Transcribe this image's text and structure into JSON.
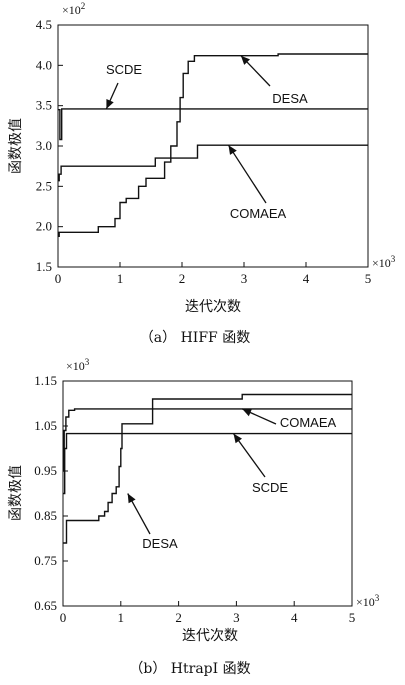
{
  "chart_data": [
    {
      "type": "line",
      "caption": "（a） HIFF 函数",
      "xlabel": "迭代次数",
      "ylabel": "函数极值",
      "x_multiplier": "×10",
      "x_multiplier_exp": "3",
      "y_multiplier": "×10",
      "y_multiplier_exp": "2",
      "xlim": [
        0,
        5
      ],
      "ylim": [
        1.5,
        4.5
      ],
      "x_ticks": [
        "0",
        "1",
        "2",
        "3",
        "4",
        "5"
      ],
      "y_ticks": [
        "1.5",
        "2.0",
        "2.5",
        "3.0",
        "3.5",
        "4.0",
        "4.5"
      ],
      "series": [
        {
          "name": "SCDE",
          "points": [
            [
              0,
              3.45
            ],
            [
              0.03,
              3.45
            ],
            [
              0.03,
              3.08
            ],
            [
              0.06,
              3.08
            ],
            [
              0.06,
              3.46
            ],
            [
              5,
              3.46
            ]
          ]
        },
        {
          "name": "DESA",
          "points": [
            [
              0,
              1.88
            ],
            [
              0.02,
              1.88
            ],
            [
              0.02,
              1.93
            ],
            [
              0.65,
              1.93
            ],
            [
              0.65,
              2.0
            ],
            [
              0.92,
              2.0
            ],
            [
              0.92,
              2.1
            ],
            [
              1.0,
              2.1
            ],
            [
              1.0,
              2.3
            ],
            [
              1.1,
              2.3
            ],
            [
              1.1,
              2.35
            ],
            [
              1.3,
              2.35
            ],
            [
              1.3,
              2.5
            ],
            [
              1.42,
              2.5
            ],
            [
              1.42,
              2.6
            ],
            [
              1.72,
              2.6
            ],
            [
              1.72,
              2.8
            ],
            [
              1.82,
              2.8
            ],
            [
              1.82,
              3.0
            ],
            [
              1.92,
              3.0
            ],
            [
              1.92,
              3.3
            ],
            [
              1.97,
              3.3
            ],
            [
              1.97,
              3.6
            ],
            [
              2.02,
              3.6
            ],
            [
              2.02,
              3.9
            ],
            [
              2.1,
              3.9
            ],
            [
              2.1,
              4.05
            ],
            [
              2.2,
              4.05
            ],
            [
              2.2,
              4.12
            ],
            [
              3.55,
              4.12
            ],
            [
              3.55,
              4.14
            ],
            [
              5,
              4.14
            ]
          ]
        },
        {
          "name": "COMAEA",
          "points": [
            [
              0,
              2.57
            ],
            [
              0.02,
              2.57
            ],
            [
              0.02,
              2.65
            ],
            [
              0.05,
              2.65
            ],
            [
              0.05,
              2.75
            ],
            [
              1.57,
              2.75
            ],
            [
              1.57,
              2.85
            ],
            [
              2.25,
              2.85
            ],
            [
              2.25,
              3.01
            ],
            [
              5,
              3.01
            ]
          ]
        }
      ],
      "annotations": [
        {
          "text": "SCDE",
          "target": [
            0.78,
            3.46
          ]
        },
        {
          "text": "DESA",
          "target": [
            2.95,
            4.12
          ]
        },
        {
          "text": "COMAEA",
          "target": [
            2.75,
            3.01
          ]
        }
      ]
    },
    {
      "type": "line",
      "caption": "（b） HtrapI 函数",
      "xlabel": "迭代次数",
      "ylabel": "函数极值",
      "x_multiplier": "×10",
      "x_multiplier_exp": "3",
      "y_multiplier": "×10",
      "y_multiplier_exp": "3",
      "xlim": [
        0,
        5
      ],
      "ylim": [
        0.65,
        1.15
      ],
      "x_ticks": [
        "0",
        "1",
        "2",
        "3",
        "4",
        "5"
      ],
      "y_ticks": [
        "0.65",
        "0.75",
        "0.85",
        "0.95",
        "1.05",
        "1.15"
      ],
      "series": [
        {
          "name": "SCDE",
          "points": [
            [
              0,
              0.9
            ],
            [
              0.03,
              0.9
            ],
            [
              0.03,
              1.0
            ],
            [
              0.06,
              1.0
            ],
            [
              0.06,
              1.033
            ],
            [
              5,
              1.033
            ]
          ]
        },
        {
          "name": "COMAEA",
          "points": [
            [
              0,
              0.95
            ],
            [
              0.02,
              0.95
            ],
            [
              0.02,
              1.04
            ],
            [
              0.05,
              1.04
            ],
            [
              0.05,
              1.07
            ],
            [
              0.1,
              1.07
            ],
            [
              0.1,
              1.085
            ],
            [
              0.2,
              1.085
            ],
            [
              0.2,
              1.088
            ],
            [
              5,
              1.088
            ]
          ]
        },
        {
          "name": "DESA",
          "points": [
            [
              0,
              0.79
            ],
            [
              0.06,
              0.79
            ],
            [
              0.06,
              0.84
            ],
            [
              0.62,
              0.84
            ],
            [
              0.62,
              0.85
            ],
            [
              0.72,
              0.85
            ],
            [
              0.72,
              0.86
            ],
            [
              0.78,
              0.86
            ],
            [
              0.78,
              0.88
            ],
            [
              0.85,
              0.88
            ],
            [
              0.85,
              0.9
            ],
            [
              0.92,
              0.9
            ],
            [
              0.92,
              0.915
            ],
            [
              0.97,
              0.915
            ],
            [
              0.97,
              0.96
            ],
            [
              1.0,
              0.96
            ],
            [
              1.0,
              1.0
            ],
            [
              1.02,
              1.0
            ],
            [
              1.02,
              1.055
            ],
            [
              1.55,
              1.055
            ],
            [
              1.55,
              1.11
            ],
            [
              3.1,
              1.11
            ],
            [
              3.1,
              1.12
            ],
            [
              5,
              1.12
            ]
          ]
        }
      ],
      "annotations": [
        {
          "text": "COMAEA",
          "target": [
            3.1,
            1.088
          ]
        },
        {
          "text": "SCDE",
          "target": [
            2.95,
            1.033
          ]
        },
        {
          "text": "DESA",
          "target": [
            1.12,
            0.9
          ]
        }
      ]
    }
  ]
}
